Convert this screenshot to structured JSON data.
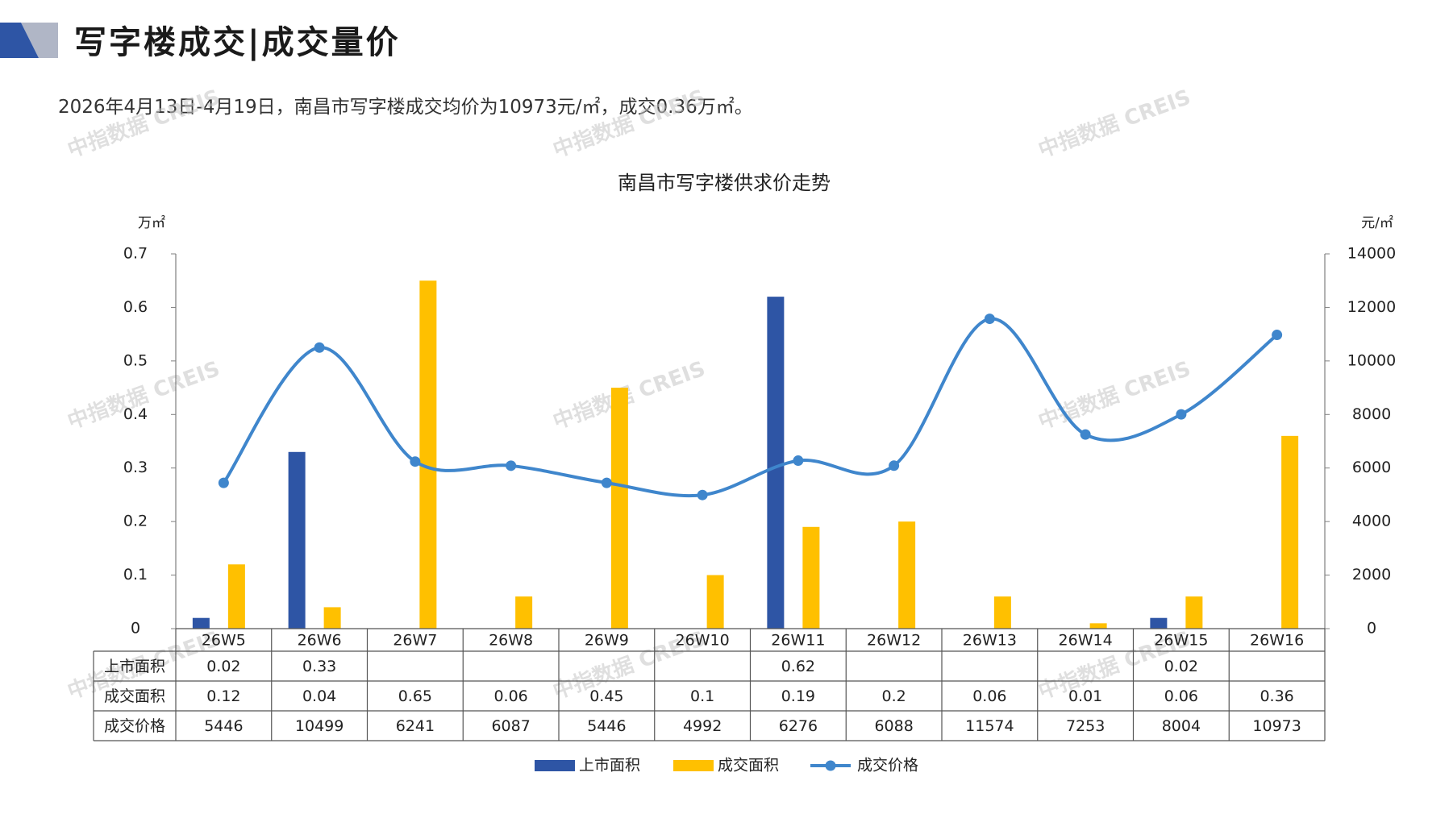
{
  "page": {
    "title": "写字楼成交|成交量价",
    "summary": "2026年4月13日-4月19日，南昌市写字楼成交均价为10973元/㎡，成交0.36万㎡。",
    "watermark": "中指数据 CREIS"
  },
  "colors": {
    "listed": "#2E55A5",
    "deal": "#FFC000",
    "price": "#3F86CC",
    "axis": "#7f7f7f",
    "logo_dark": "#2E55A5",
    "logo_light": "#B0B6C6"
  },
  "chart_data": {
    "type": "bar",
    "title": "南昌市写字楼供求价走势",
    "left_unit": "万㎡",
    "right_unit": "元/㎡",
    "categories": [
      "26W5",
      "26W6",
      "26W7",
      "26W8",
      "26W9",
      "26W10",
      "26W11",
      "26W12",
      "26W13",
      "26W14",
      "26W15",
      "26W16"
    ],
    "left_ticks": [
      "0",
      "0.1",
      "0.2",
      "0.3",
      "0.4",
      "0.5",
      "0.6",
      "0.7"
    ],
    "right_ticks": [
      "0",
      "2000",
      "4000",
      "6000",
      "8000",
      "10000",
      "12000",
      "14000"
    ],
    "ylim_left": [
      0,
      0.7
    ],
    "ylim_right": [
      0,
      14000
    ],
    "series": [
      {
        "name": "上市面积",
        "kind": "bar",
        "axis": "left",
        "values": [
          0.02,
          0.33,
          null,
          null,
          null,
          null,
          0.62,
          null,
          null,
          null,
          0.02,
          null
        ]
      },
      {
        "name": "成交面积",
        "kind": "bar",
        "axis": "left",
        "values": [
          0.12,
          0.04,
          0.65,
          0.06,
          0.45,
          0.1,
          0.19,
          0.2,
          0.06,
          0.01,
          0.06,
          0.36
        ]
      },
      {
        "name": "成交价格",
        "kind": "line",
        "axis": "right",
        "values": [
          5446,
          10499,
          6241,
          6087,
          5446,
          4992,
          6276,
          6088,
          11574,
          7253,
          8004,
          10973
        ]
      }
    ],
    "table_rows": [
      {
        "label": "上市面积",
        "cells": [
          "0.02",
          "0.33",
          "",
          "",
          "",
          "",
          "0.62",
          "",
          "",
          "",
          "0.02",
          ""
        ]
      },
      {
        "label": "成交面积",
        "cells": [
          "0.12",
          "0.04",
          "0.65",
          "0.06",
          "0.45",
          "0.1",
          "0.19",
          "0.2",
          "0.06",
          "0.01",
          "0.06",
          "0.36"
        ]
      },
      {
        "label": "成交价格",
        "cells": [
          "5446",
          "10499",
          "6241",
          "6087",
          "5446",
          "4992",
          "6276",
          "6088",
          "11574",
          "7253",
          "8004",
          "10973"
        ]
      }
    ],
    "legend_position": "bottom",
    "grid": false
  }
}
